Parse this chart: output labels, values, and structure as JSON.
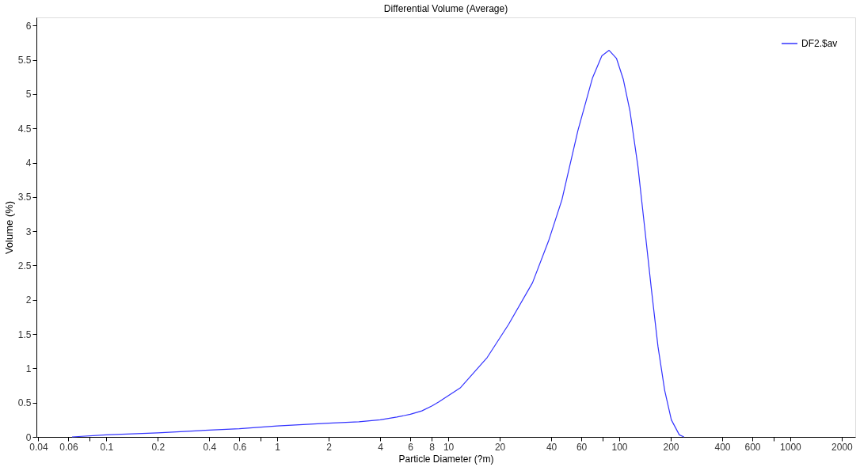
{
  "chart_data": {
    "type": "line",
    "title": "Differential Volume (Average)",
    "xlabel": "Particle Diameter (?m)",
    "ylabel": "Volume (%)",
    "log": "x",
    "grid": false,
    "legend": "top right",
    "marker": "none",
    "line_style": "solid",
    "xlim": [
      0.039,
      2400
    ],
    "ylim": [
      0,
      6.12
    ],
    "xticks": [
      0.04,
      0.06,
      {
        "value": 0.08,
        "label": null
      },
      0.1,
      0.2,
      0.4,
      0.6,
      {
        "value": 0.8,
        "label": null
      },
      1,
      2,
      4,
      6,
      8,
      10,
      20,
      40,
      60,
      {
        "value": 80,
        "label": null
      },
      100,
      200,
      400,
      600,
      {
        "value": 800,
        "label": null
      },
      1000,
      2000
    ],
    "yticks": [
      0,
      0.5,
      1,
      1.5,
      2,
      2.5,
      3,
      3.5,
      4,
      4.5,
      5,
      5.5,
      6
    ],
    "series": [
      {
        "name": "DF2.$av",
        "color": "#3333ff",
        "x": [
          0.063,
          0.1,
          0.2,
          0.4,
          0.6,
          1,
          2,
          3,
          4,
          5,
          6,
          7,
          8,
          8.8,
          11.8,
          16.9,
          22.5,
          31.1,
          38.6,
          46.2,
          57.3,
          69.8,
          79.1,
          87.2,
          96.4,
          105.5,
          115.4,
          128.5,
          140.7,
          153.9,
          168.4,
          184.3,
          201.6,
          224.5,
          239
        ],
        "values": [
          0.0,
          0.03,
          0.06,
          0.1,
          0.12,
          0.16,
          0.2,
          0.22,
          0.25,
          0.29,
          0.33,
          0.38,
          0.45,
          0.51,
          0.72,
          1.16,
          1.64,
          2.25,
          2.86,
          3.46,
          4.47,
          5.24,
          5.56,
          5.64,
          5.52,
          5.22,
          4.76,
          3.95,
          3.06,
          2.17,
          1.32,
          0.68,
          0.25,
          0.03,
          0.0
        ]
      }
    ]
  }
}
